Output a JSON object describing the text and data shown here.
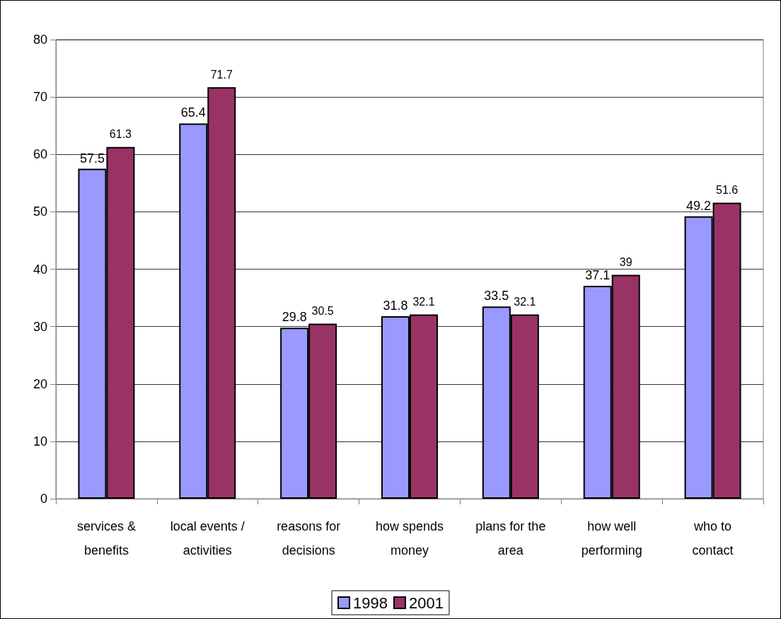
{
  "chart_data": {
    "type": "bar",
    "categories": [
      "services &\nbenefits",
      "local events /\nactivities",
      "reasons for\ndecisions",
      "how spends\nmoney",
      "plans for the\narea",
      "how well\nperforming",
      "who to\ncontact"
    ],
    "series": [
      {
        "name": "1998",
        "color": "#9999ff",
        "values": [
          57.5,
          65.4,
          29.8,
          31.8,
          33.5,
          37.1,
          49.2
        ]
      },
      {
        "name": "2001",
        "color": "#993366",
        "values": [
          61.3,
          71.7,
          30.5,
          32.1,
          32.1,
          39,
          51.6
        ]
      }
    ],
    "ylim": [
      0,
      80
    ],
    "yticks": [
      0,
      10,
      20,
      30,
      40,
      50,
      60,
      70,
      80
    ],
    "grid": "y",
    "legend": "bottom",
    "data_labels": true
  }
}
